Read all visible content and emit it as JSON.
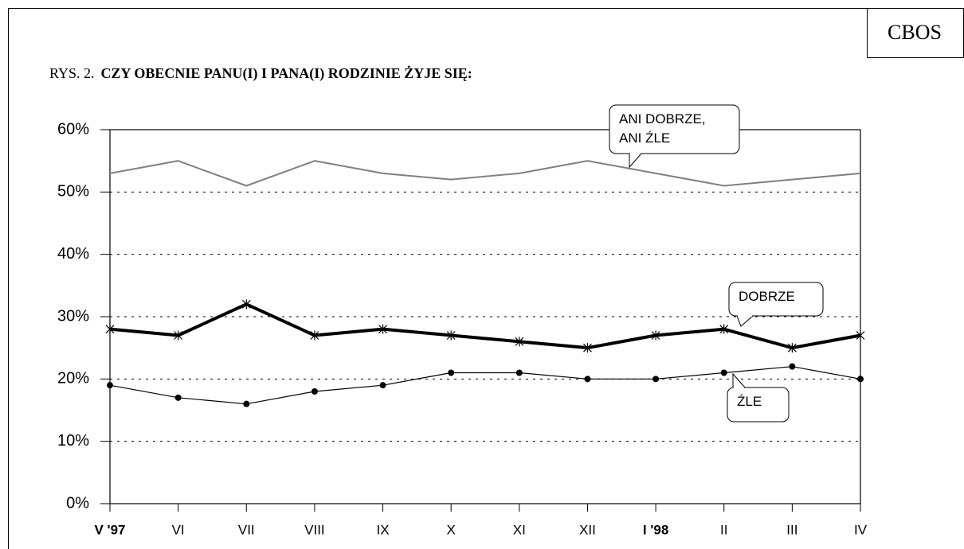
{
  "chart_data": {
    "type": "line",
    "source": "CBOS",
    "figure_label": "RYS. 2.",
    "title": "CZY OBECNIE PANU(I) I PANA(I) RODZINIE ŻYJE SIĘ:",
    "categories": [
      "V '97",
      "VI",
      "VII",
      "VIII",
      "IX",
      "X",
      "XI",
      "XII",
      "I '98",
      "II",
      "III",
      "IV"
    ],
    "bold_categories": [
      0,
      8
    ],
    "ylim": [
      0,
      60
    ],
    "yticks": [
      {
        "value": 0,
        "label": "0%"
      },
      {
        "value": 10,
        "label": "10%"
      },
      {
        "value": 20,
        "label": "20%"
      },
      {
        "value": 30,
        "label": "30%"
      },
      {
        "value": 40,
        "label": "40%"
      },
      {
        "value": 50,
        "label": "50%"
      },
      {
        "value": 60,
        "label": "60%"
      }
    ],
    "grid": true,
    "series": [
      {
        "name": [
          "ANI DOBRZE,",
          "ANI ŹLE"
        ],
        "color": "#808080",
        "width": 2,
        "marker": "none",
        "values": [
          53,
          55,
          51,
          55,
          53,
          52,
          53,
          55,
          53,
          51,
          52,
          53
        ]
      },
      {
        "name": [
          "DOBRZE"
        ],
        "color": "#000000",
        "width": 4,
        "marker": "star",
        "values": [
          28,
          27,
          32,
          27,
          28,
          27,
          26,
          25,
          27,
          28,
          25,
          27
        ]
      },
      {
        "name": [
          "ŹLE"
        ],
        "color": "#000000",
        "width": 1.2,
        "marker": "dot",
        "values": [
          19,
          17,
          16,
          18,
          19,
          21,
          21,
          20,
          20,
          21,
          22,
          20
        ]
      }
    ]
  }
}
